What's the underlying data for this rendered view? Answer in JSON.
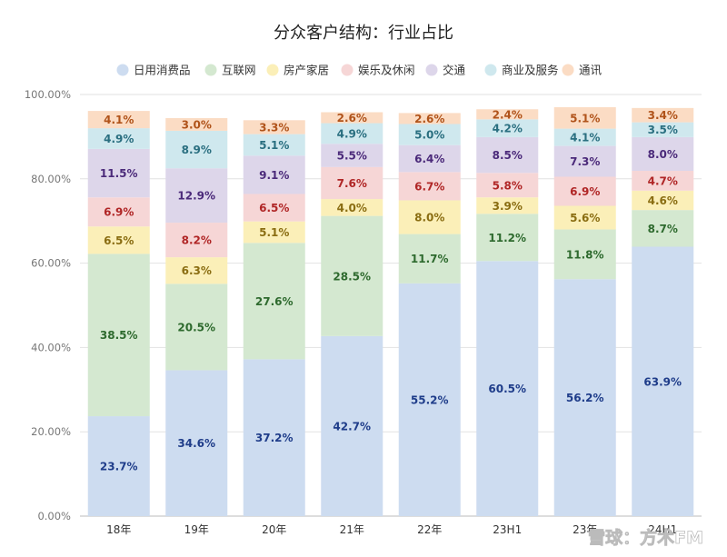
{
  "chart_data": {
    "type": "bar",
    "stacked": true,
    "title": "分众客户结构：行业占比",
    "categories": [
      "18年",
      "19年",
      "20年",
      "21年",
      "22年",
      "23H1",
      "23年",
      "24H1"
    ],
    "ylim": [
      0,
      100
    ],
    "yticks": [
      "0.00%",
      "20.00%",
      "40.00%",
      "60.00%",
      "80.00%",
      "100.00%"
    ],
    "legend_position": "top",
    "series": [
      {
        "name": "日用消费品",
        "color": "#cddcf0",
        "label_color": "#1f3d8a",
        "values": [
          23.7,
          34.6,
          37.2,
          42.7,
          55.2,
          60.5,
          56.2,
          63.9
        ]
      },
      {
        "name": "互联网",
        "color": "#d4e8d0",
        "label_color": "#2e6a2e",
        "values": [
          38.5,
          20.5,
          27.6,
          28.5,
          11.7,
          11.2,
          11.8,
          8.7
        ]
      },
      {
        "name": "房产家居",
        "color": "#fbefb8",
        "label_color": "#8a6d12",
        "values": [
          6.5,
          6.3,
          5.1,
          4.0,
          8.0,
          3.9,
          5.6,
          4.6
        ]
      },
      {
        "name": "娱乐及休闲",
        "color": "#f6d6d6",
        "label_color": "#b02626",
        "values": [
          6.9,
          8.2,
          6.5,
          7.6,
          6.7,
          5.8,
          6.9,
          4.7
        ]
      },
      {
        "name": "交通",
        "color": "#ddd6ea",
        "label_color": "#4b2a7a",
        "values": [
          11.5,
          12.9,
          9.1,
          5.5,
          6.4,
          8.5,
          7.3,
          8.0
        ]
      },
      {
        "name": "商业及服务",
        "color": "#cfe8ee",
        "label_color": "#2a6f80",
        "values": [
          4.9,
          8.9,
          5.1,
          4.9,
          5.0,
          4.2,
          4.1,
          3.5
        ]
      },
      {
        "name": "通讯",
        "color": "#fbdcc4",
        "label_color": "#b0531a",
        "values": [
          4.1,
          3.0,
          3.3,
          2.6,
          2.6,
          2.4,
          5.1,
          3.4
        ]
      }
    ]
  },
  "watermark": "雪球：方术FM"
}
